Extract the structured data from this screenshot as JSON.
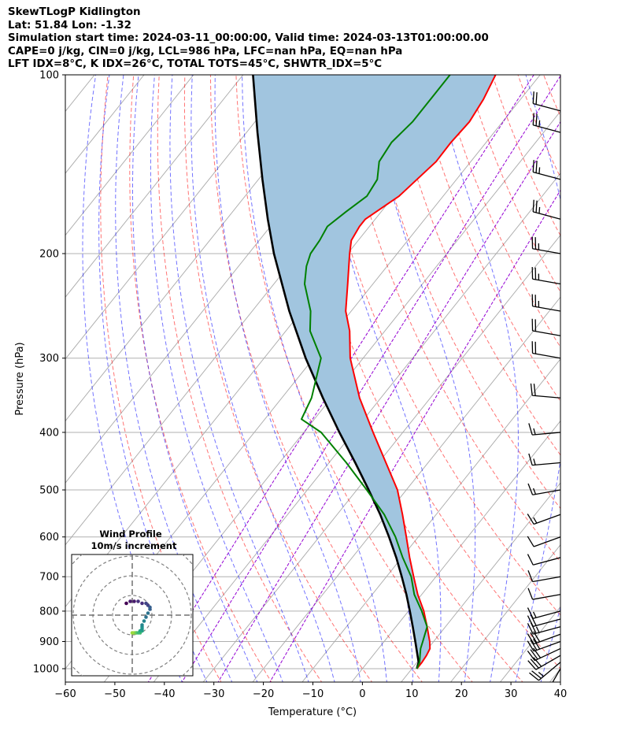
{
  "header": {
    "line1": "SkewTLogP Kidlington",
    "line2": "Lat: 51.84   Lon: -1.32",
    "line3": "Simulation start time: 2024-03-11_00:00:00, Valid time: 2024-03-13T01:00:00.00",
    "line4": "CAPE=0 j/kg, CIN=0 j/kg, LCL=986 hPa, LFC=nan hPa, EQ=nan hPa",
    "line5": "LFT IDX=8°C, K IDX=26°C, TOTAL TOTS=45°C, SHWTR_IDX=5°C"
  },
  "chart_data": [
    {
      "type": "line",
      "subtype": "skew-t log-p",
      "xlabel": "Temperature (°C)",
      "ylabel": "Pressure (hPa)",
      "xlim": [
        -60,
        40
      ],
      "ylim": [
        1050,
        100
      ],
      "yscale": "log",
      "x_ticks": [
        -60,
        -50,
        -40,
        -30,
        -20,
        -10,
        0,
        10,
        20,
        30,
        40
      ],
      "x_tick_labels": [
        "−60",
        "−50",
        "−40",
        "−30",
        "−20",
        "−10",
        "0",
        "10",
        "20",
        "30",
        "40"
      ],
      "y_ticks": [
        1000,
        900,
        800,
        700,
        600,
        500,
        400,
        300,
        200,
        100
      ],
      "y_tick_labels": [
        "1000",
        "900",
        "800",
        "700",
        "600",
        "500",
        "400",
        "300",
        "200",
        "100"
      ],
      "grid": true,
      "colors": {
        "temperature": "#ff0000",
        "dewpoint": "#008000",
        "parcel": "#000000",
        "fill": "#a1c5df",
        "dry_adiabat": "#ff0000",
        "moist_adiabat": "#0000ff",
        "mixing_ratio": "#9400d3",
        "isotherm": "#aaaaaa"
      },
      "series": [
        {
          "role": "temperature",
          "pressure": [
            1000,
            975,
            950,
            925,
            900,
            850,
            800,
            750,
            700,
            650,
            600,
            550,
            500,
            450,
            400,
            350,
            300,
            270,
            250,
            225,
            200,
            190,
            180,
            175,
            160,
            150,
            140,
            130,
            120,
            110,
            100
          ],
          "temperature": [
            11.0,
            11.0,
            10.8,
            10.4,
            9.2,
            6.3,
            3.1,
            -0.8,
            -4.5,
            -8.4,
            -12.4,
            -16.8,
            -21.8,
            -28.5,
            -36.0,
            -44.3,
            -52.6,
            -57.1,
            -61.1,
            -65.1,
            -69.6,
            -71.4,
            -72.0,
            -72.0,
            -68.9,
            -68.0,
            -67.0,
            -67.1,
            -66.7,
            -67.5,
            -69.0
          ]
        },
        {
          "role": "dewpoint",
          "pressure": [
            1000,
            975,
            950,
            925,
            900,
            850,
            800,
            750,
            700,
            650,
            600,
            550,
            500,
            450,
            400,
            380,
            350,
            300,
            270,
            250,
            225,
            210,
            200,
            190,
            180,
            170,
            160,
            150,
            140,
            130,
            120,
            110,
            100
          ],
          "temperature": [
            11.0,
            10.5,
            9.5,
            8.5,
            7.8,
            6.3,
            2.7,
            -1.5,
            -5.0,
            -9.8,
            -14.6,
            -20.5,
            -28.0,
            -36.5,
            -46.5,
            -52.6,
            -54.0,
            -58.5,
            -65.1,
            -68.2,
            -73.8,
            -76.3,
            -77.5,
            -77.8,
            -78.5,
            -77.1,
            -75.4,
            -76.0,
            -78.5,
            -79.1,
            -78.2,
            -78.2,
            -78.2
          ]
        },
        {
          "role": "parcel",
          "pressure": [
            1000,
            975,
            950,
            900,
            850,
            800,
            750,
            700,
            650,
            600,
            550,
            500,
            450,
            400,
            350,
            300,
            250,
            200,
            175,
            150,
            125,
            100
          ],
          "temperature": [
            11.0,
            10.3,
            9.0,
            6.3,
            3.4,
            0.3,
            -3.1,
            -6.9,
            -11.1,
            -15.9,
            -21.3,
            -27.6,
            -34.7,
            -42.8,
            -51.7,
            -61.6,
            -72.5,
            -84.9,
            -91.7,
            -99.2,
            -107.8,
            -118.0
          ]
        }
      ]
    },
    {
      "type": "scatter",
      "title": "Wind Profile",
      "subtitle": "10m/s increment",
      "ring_increment": 10,
      "colormap": "viridis",
      "u": [
        0,
        1,
        2,
        2,
        3,
        4,
        4,
        5,
        5,
        5,
        5,
        6,
        7,
        8,
        9,
        9,
        8,
        7,
        5,
        3,
        1,
        -1,
        -3
      ],
      "v": [
        -9,
        -9,
        -9,
        -9,
        -9,
        -9,
        -8,
        -8,
        -7,
        -6,
        -5,
        -3,
        -1,
        1,
        3,
        4,
        5,
        6,
        6,
        7,
        7,
        7,
        6
      ]
    }
  ],
  "wind_barbs": {
    "pressure": [
      1000,
      975,
      950,
      925,
      900,
      875,
      850,
      825,
      800,
      750,
      700,
      650,
      600,
      550,
      500,
      450,
      400,
      350,
      300,
      275,
      250,
      225,
      200,
      175,
      150,
      125,
      115,
      100
    ],
    "speed_kt": [
      15,
      25,
      30,
      30,
      30,
      30,
      25,
      20,
      15,
      10,
      10,
      10,
      10,
      15,
      15,
      15,
      15,
      20,
      20,
      20,
      25,
      25,
      25,
      25,
      25,
      25,
      20,
      20
    ],
    "direction_deg": [
      210,
      230,
      240,
      245,
      250,
      250,
      255,
      255,
      255,
      260,
      260,
      255,
      250,
      250,
      260,
      265,
      265,
      275,
      280,
      280,
      280,
      280,
      280,
      285,
      285,
      285,
      285,
      285
    ]
  }
}
